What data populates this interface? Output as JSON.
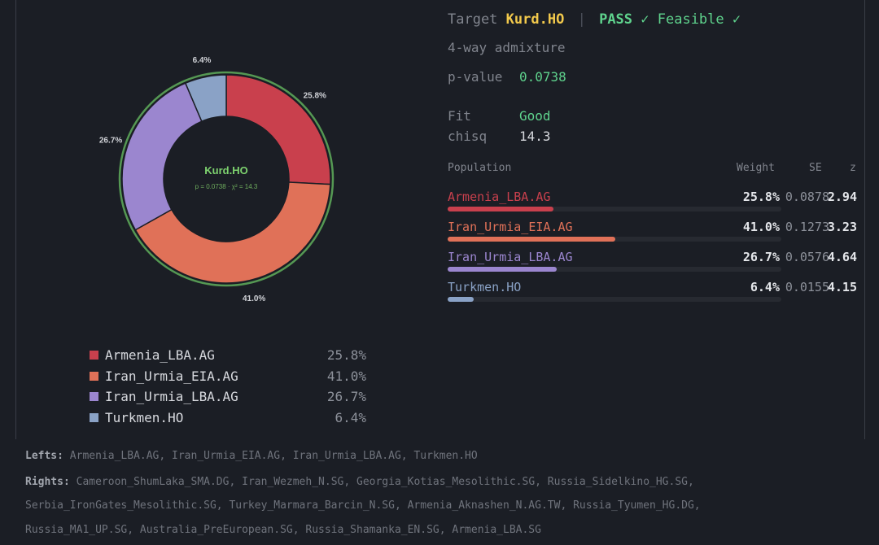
{
  "header": {
    "target_label": "Target",
    "target": "Kurd.HO",
    "pass": "PASS ✓",
    "feasible": "Feasible ✓",
    "subtitle": "4-way admixture"
  },
  "stats": [
    {
      "label": "p-value",
      "value": "0.0738",
      "color": "#5fd38d"
    },
    {
      "label": "Fit",
      "value": "Good",
      "color": "#5fd38d"
    },
    {
      "label": "chisq",
      "value": "14.3",
      "color": "#d7d9de"
    }
  ],
  "table": {
    "headers": {
      "population": "Population",
      "weight": "Weight",
      "se": "SE",
      "z": "z"
    },
    "rows": [
      {
        "name": "Armenia_LBA.AG",
        "weight": "25.8%",
        "se": "0.0878",
        "z": "2.94"
      },
      {
        "name": "Iran_Urmia_EIA.AG",
        "weight": "41.0%",
        "se": "0.1273",
        "z": "3.23"
      },
      {
        "name": "Iran_Urmia_LBA.AG",
        "weight": "26.7%",
        "se": "0.0576",
        "z": "4.64"
      },
      {
        "name": "Turkmen.HO",
        "weight": "6.4%",
        "se": "0.0155",
        "z": "4.15"
      }
    ]
  },
  "chart_data": {
    "type": "pie",
    "center_title": "Kurd.HO",
    "center_subtitle": "p = 0.0738 · χ² = 14.3",
    "slices": [
      {
        "label": "Armenia_LBA.AG",
        "value": 25.8,
        "color": "#c9404d"
      },
      {
        "label": "Iran_Urmia_EIA.AG",
        "value": 41.0,
        "color": "#e07158"
      },
      {
        "label": "Iran_Urmia_LBA.AG",
        "value": 26.7,
        "color": "#9b86cf"
      },
      {
        "label": "Turkmen.HO",
        "value": 6.4,
        "color": "#8aa2c6"
      }
    ],
    "slice_labels": [
      "25.8%",
      "41.0%",
      "26.7%",
      "6.4%"
    ],
    "ring_color": "#5fae5c"
  },
  "legend": [
    {
      "name": "Armenia_LBA.AG",
      "pct": "25.8%"
    },
    {
      "name": "Iran_Urmia_EIA.AG",
      "pct": "41.0%"
    },
    {
      "name": "Iran_Urmia_LBA.AG",
      "pct": "26.7%"
    },
    {
      "name": "Turkmen.HO",
      "pct": "6.4%"
    }
  ],
  "footer": {
    "lefts_label": "Lefts:",
    "lefts": "Armenia_LBA.AG, Iran_Urmia_EIA.AG, Iran_Urmia_LBA.AG, Turkmen.HO",
    "rights_label": "Rights:",
    "rights_line1": "Cameroon_ShumLaka_SMA.DG, Iran_Wezmeh_N.SG, Georgia_Kotias_Mesolithic.SG, Russia_Sidelkino_HG.SG,",
    "rights_line2": "Serbia_IronGates_Mesolithic.SG, Turkey_Marmara_Barcin_N.SG, Armenia_Aknashen_N.AG.TW, Russia_Tyumen_HG.DG,",
    "rights_line3": "Russia_MA1_UP.SG, Australia_PreEuropean.SG, Russia_Shamanka_EN.SG, Armenia_LBA.SG"
  }
}
